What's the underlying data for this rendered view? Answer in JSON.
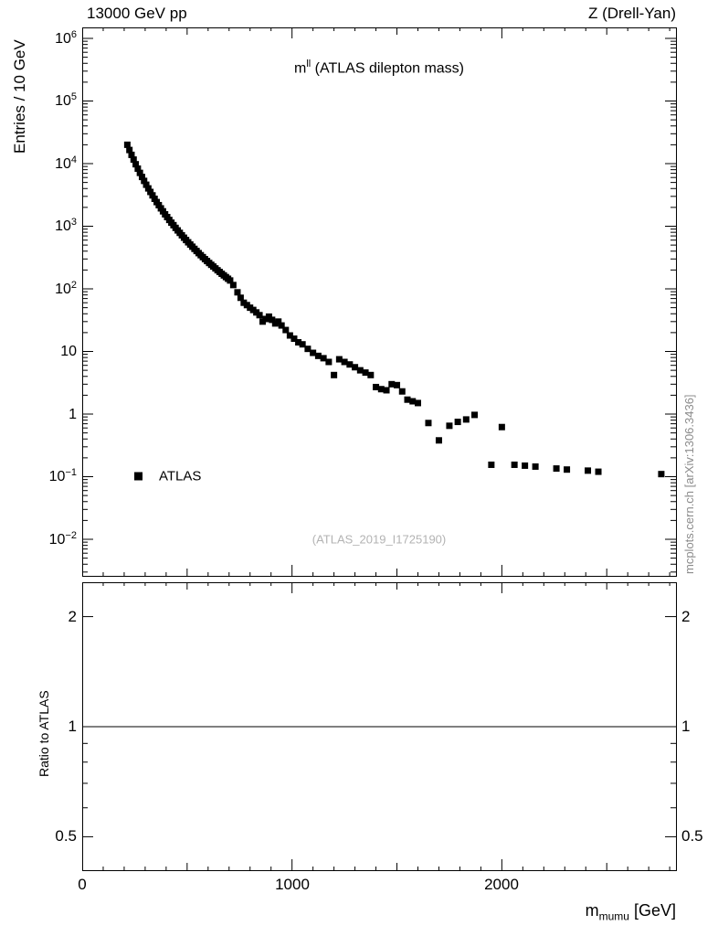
{
  "header": {
    "left": "13000 GeV pp",
    "right": "Z (Drell-Yan)"
  },
  "watermark_vertical": "mcplots.cern.ch [arXiv:1306.3436]",
  "analysis_id": "(ATLAS_2019_I1725190)",
  "legend": {
    "items": [
      {
        "label": "ATLAS",
        "marker": "filled-square",
        "color": "#000000"
      }
    ]
  },
  "chart_data": {
    "type": "scatter",
    "title": {
      "base": "m",
      "sup": "ll",
      "rest": " (ATLAS dilepton mass)"
    },
    "ylabel": "Entries / 10 GeV",
    "ratio_ylabel": "Ratio to ATLAS",
    "xlabel": {
      "base": "m",
      "sub": "mumu",
      "rest": " [GeV]"
    },
    "yscale": "log",
    "grid": false,
    "legend_position": "left-middle",
    "xlim": [
      0,
      2830
    ],
    "ylim": [
      0.0026,
      1500000
    ],
    "xticks": {
      "major": [
        0,
        1000,
        2000
      ],
      "labels": [
        "0",
        "1000",
        "2000"
      ],
      "medium_step": 500,
      "minor_step": 100
    },
    "yaxis_tick_labels": [
      {
        "t": "10",
        "s": "6"
      },
      {
        "t": "10",
        "s": "5"
      },
      {
        "t": "10",
        "s": "4"
      },
      {
        "t": "10",
        "s": "3"
      },
      {
        "t": "10",
        "s": "2"
      },
      {
        "t": "10",
        "s": ""
      },
      {
        "t": "1",
        "s": ""
      },
      {
        "t": "10",
        "s": "−1"
      },
      {
        "t": "10",
        "s": "−2"
      }
    ],
    "ratio": {
      "line_y": 1,
      "ylim": [
        0.4,
        2.5
      ],
      "yticks": [
        2,
        1,
        0.5
      ]
    },
    "ratio_tick_labels": [
      "2",
      "1",
      "0.5"
    ],
    "series": [
      {
        "name": "ATLAS",
        "marker": "square",
        "color": "#000000",
        "points": [
          [
            215,
            20000
          ],
          [
            225,
            16500
          ],
          [
            235,
            13800
          ],
          [
            245,
            11600
          ],
          [
            255,
            9770
          ],
          [
            265,
            8310
          ],
          [
            275,
            7110
          ],
          [
            285,
            6120
          ],
          [
            295,
            5300
          ],
          [
            305,
            4600
          ],
          [
            315,
            4020
          ],
          [
            325,
            3530
          ],
          [
            335,
            3110
          ],
          [
            345,
            2740
          ],
          [
            355,
            2430
          ],
          [
            365,
            2170
          ],
          [
            375,
            1930
          ],
          [
            385,
            1730
          ],
          [
            395,
            1550
          ],
          [
            405,
            1400
          ],
          [
            415,
            1260
          ],
          [
            425,
            1140
          ],
          [
            435,
            1040
          ],
          [
            445,
            941
          ],
          [
            455,
            858
          ],
          [
            465,
            784
          ],
          [
            475,
            717
          ],
          [
            485,
            656
          ],
          [
            495,
            602
          ],
          [
            505,
            554
          ],
          [
            515,
            510
          ],
          [
            525,
            471
          ],
          [
            535,
            435
          ],
          [
            545,
            402
          ],
          [
            555,
            372
          ],
          [
            565,
            345
          ],
          [
            575,
            321
          ],
          [
            585,
            298
          ],
          [
            595,
            278
          ],
          [
            605,
            259
          ],
          [
            615,
            242
          ],
          [
            625,
            227
          ],
          [
            635,
            212
          ],
          [
            645,
            198
          ],
          [
            655,
            186
          ],
          [
            665,
            174
          ],
          [
            675,
            164
          ],
          [
            685,
            154
          ],
          [
            695,
            145
          ],
          [
            705,
            136
          ],
          [
            720,
            115
          ],
          [
            740,
            88
          ],
          [
            755,
            72
          ],
          [
            770,
            60
          ],
          [
            785,
            55
          ],
          [
            800,
            50
          ],
          [
            815,
            46
          ],
          [
            830,
            42
          ],
          [
            845,
            38
          ],
          [
            860,
            30
          ],
          [
            875,
            33
          ],
          [
            890,
            36
          ],
          [
            905,
            32
          ],
          [
            920,
            28
          ],
          [
            935,
            30
          ],
          [
            950,
            26
          ],
          [
            970,
            22
          ],
          [
            990,
            18
          ],
          [
            1010,
            16
          ],
          [
            1030,
            14
          ],
          [
            1050,
            13
          ],
          [
            1075,
            11
          ],
          [
            1100,
            9.5
          ],
          [
            1125,
            8.5
          ],
          [
            1150,
            7.8
          ],
          [
            1175,
            6.8
          ],
          [
            1200,
            4.2
          ],
          [
            1225,
            7.5
          ],
          [
            1250,
            6.8
          ],
          [
            1275,
            6.2
          ],
          [
            1300,
            5.6
          ],
          [
            1325,
            5.0
          ],
          [
            1350,
            4.6
          ],
          [
            1375,
            4.2
          ],
          [
            1400,
            2.7
          ],
          [
            1425,
            2.5
          ],
          [
            1450,
            2.4
          ],
          [
            1475,
            3.0
          ],
          [
            1500,
            2.9
          ],
          [
            1525,
            2.3
          ],
          [
            1550,
            1.7
          ],
          [
            1575,
            1.6
          ],
          [
            1600,
            1.5
          ],
          [
            1650,
            0.72
          ],
          [
            1700,
            0.38
          ],
          [
            1750,
            0.65
          ],
          [
            1790,
            0.75
          ],
          [
            1830,
            0.82
          ],
          [
            1870,
            0.97
          ],
          [
            1950,
            0.155
          ],
          [
            2000,
            0.62
          ],
          [
            2060,
            0.155
          ],
          [
            2110,
            0.15
          ],
          [
            2160,
            0.145
          ],
          [
            2260,
            0.135
          ],
          [
            2310,
            0.13
          ],
          [
            2410,
            0.125
          ],
          [
            2460,
            0.12
          ],
          [
            2760,
            0.11
          ]
        ]
      }
    ]
  }
}
